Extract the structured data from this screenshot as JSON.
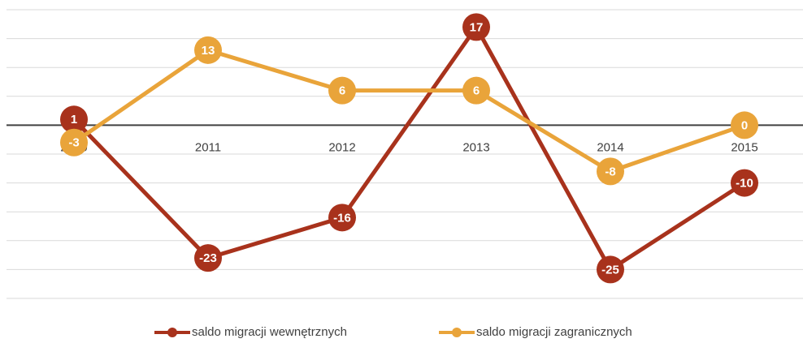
{
  "chart_data": {
    "type": "line",
    "categories": [
      "2010",
      "2011",
      "2012",
      "2013",
      "2014",
      "2015"
    ],
    "series": [
      {
        "name": "saldo migracji wewnętrznych",
        "color": "#a8321c",
        "values": [
          1,
          -23,
          -16,
          17,
          -25,
          -10
        ]
      },
      {
        "name": "saldo migracji zagranicznych",
        "color": "#e9a43a",
        "values": [
          -3,
          13,
          6,
          6,
          -8,
          0
        ]
      }
    ],
    "ylim": [
      -30,
      20
    ],
    "yticks": [
      -30,
      -25,
      -20,
      -15,
      -10,
      -5,
      0,
      5,
      10,
      15,
      20
    ],
    "grid": true,
    "legend": "bottom"
  }
}
